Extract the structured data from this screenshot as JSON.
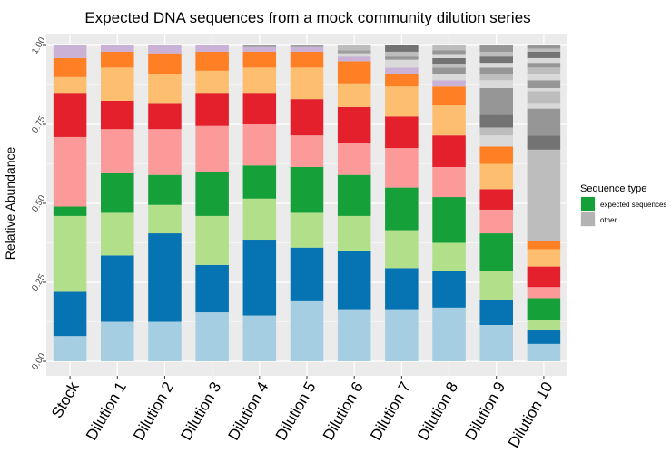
{
  "chart_data": {
    "type": "bar",
    "stacked": true,
    "title": "Expected DNA sequences from a mock community dilution series",
    "xlabel": "",
    "ylabel": "Relative Abundance",
    "ylim": [
      0,
      1
    ],
    "yticks": [
      "0.00",
      "0.25",
      "0.50",
      "0.75",
      "1.00"
    ],
    "grid": true,
    "legend": {
      "title": "Sequence type",
      "position": "right",
      "entries": [
        {
          "label": "expected sequences",
          "color": "#16a03a"
        },
        {
          "label": "other",
          "color": "#b3b3b3"
        }
      ]
    },
    "categories": [
      "Stock",
      "Dilution 1",
      "Dilution 2",
      "Dilution 3",
      "Dilution 4",
      "Dilution 5",
      "Dilution 6",
      "Dilution 7",
      "Dilution 8",
      "Dilution 9",
      "Dilution 10"
    ],
    "stack_palette": [
      "#a6cee3",
      "#1f78b4",
      "#b2df8a",
      "#33a02c",
      "#fb9a99",
      "#e31a1c",
      "#fdbf6f",
      "#ff7f00",
      "#cab2d6",
      "#d9d9d9",
      "#bdbdbd",
      "#969696",
      "#737373"
    ],
    "bars": [
      {
        "category": "Stock",
        "segments": [
          {
            "value": 0.08,
            "color": "#a6cee3"
          },
          {
            "value": 0.14,
            "color": "#0673b3"
          },
          {
            "value": 0.24,
            "color": "#b2df8a"
          },
          {
            "value": 0.03,
            "color": "#16a03a"
          },
          {
            "value": 0.22,
            "color": "#fb9a99"
          },
          {
            "value": 0.14,
            "color": "#e3202b"
          },
          {
            "value": 0.05,
            "color": "#fdbf6f"
          },
          {
            "value": 0.06,
            "color": "#ff7f24"
          },
          {
            "value": 0.04,
            "color": "#cab2d6"
          }
        ]
      },
      {
        "category": "Dilution 1",
        "segments": [
          {
            "value": 0.125,
            "color": "#a6cee3"
          },
          {
            "value": 0.21,
            "color": "#0673b3"
          },
          {
            "value": 0.135,
            "color": "#b2df8a"
          },
          {
            "value": 0.125,
            "color": "#16a03a"
          },
          {
            "value": 0.14,
            "color": "#fb9a99"
          },
          {
            "value": 0.09,
            "color": "#e3202b"
          },
          {
            "value": 0.105,
            "color": "#fdbf6f"
          },
          {
            "value": 0.05,
            "color": "#ff7f24"
          },
          {
            "value": 0.02,
            "color": "#cab2d6"
          }
        ]
      },
      {
        "category": "Dilution 2",
        "segments": [
          {
            "value": 0.125,
            "color": "#a6cee3"
          },
          {
            "value": 0.28,
            "color": "#0673b3"
          },
          {
            "value": 0.09,
            "color": "#b2df8a"
          },
          {
            "value": 0.095,
            "color": "#16a03a"
          },
          {
            "value": 0.145,
            "color": "#fb9a99"
          },
          {
            "value": 0.08,
            "color": "#e3202b"
          },
          {
            "value": 0.095,
            "color": "#fdbf6f"
          },
          {
            "value": 0.065,
            "color": "#ff7f24"
          },
          {
            "value": 0.025,
            "color": "#cab2d6"
          }
        ]
      },
      {
        "category": "Dilution 3",
        "segments": [
          {
            "value": 0.155,
            "color": "#a6cee3"
          },
          {
            "value": 0.15,
            "color": "#0673b3"
          },
          {
            "value": 0.155,
            "color": "#b2df8a"
          },
          {
            "value": 0.14,
            "color": "#16a03a"
          },
          {
            "value": 0.145,
            "color": "#fb9a99"
          },
          {
            "value": 0.105,
            "color": "#e3202b"
          },
          {
            "value": 0.07,
            "color": "#fdbf6f"
          },
          {
            "value": 0.06,
            "color": "#ff7f24"
          },
          {
            "value": 0.02,
            "color": "#cab2d6"
          }
        ]
      },
      {
        "category": "Dilution 4",
        "segments": [
          {
            "value": 0.145,
            "color": "#a6cee3"
          },
          {
            "value": 0.24,
            "color": "#0673b3"
          },
          {
            "value": 0.13,
            "color": "#b2df8a"
          },
          {
            "value": 0.105,
            "color": "#16a03a"
          },
          {
            "value": 0.13,
            "color": "#fb9a99"
          },
          {
            "value": 0.1,
            "color": "#e3202b"
          },
          {
            "value": 0.08,
            "color": "#fdbf6f"
          },
          {
            "value": 0.05,
            "color": "#ff7f24"
          },
          {
            "value": 0.015,
            "color": "#cab2d6"
          },
          {
            "value": 0.005,
            "color": "#9e9e9e"
          }
        ]
      },
      {
        "category": "Dilution 5",
        "segments": [
          {
            "value": 0.19,
            "color": "#a6cee3"
          },
          {
            "value": 0.17,
            "color": "#0673b3"
          },
          {
            "value": 0.11,
            "color": "#b2df8a"
          },
          {
            "value": 0.145,
            "color": "#16a03a"
          },
          {
            "value": 0.1,
            "color": "#fb9a99"
          },
          {
            "value": 0.115,
            "color": "#e3202b"
          },
          {
            "value": 0.1,
            "color": "#fdbf6f"
          },
          {
            "value": 0.05,
            "color": "#ff7f24"
          },
          {
            "value": 0.015,
            "color": "#cab2d6"
          },
          {
            "value": 0.005,
            "color": "#9e9e9e"
          }
        ]
      },
      {
        "category": "Dilution 6",
        "segments": [
          {
            "value": 0.165,
            "color": "#a6cee3"
          },
          {
            "value": 0.185,
            "color": "#0673b3"
          },
          {
            "value": 0.11,
            "color": "#b2df8a"
          },
          {
            "value": 0.13,
            "color": "#16a03a"
          },
          {
            "value": 0.1,
            "color": "#fb9a99"
          },
          {
            "value": 0.115,
            "color": "#e3202b"
          },
          {
            "value": 0.075,
            "color": "#fdbf6f"
          },
          {
            "value": 0.07,
            "color": "#ff7f24"
          },
          {
            "value": 0.015,
            "color": "#cab2d6"
          },
          {
            "value": 0.01,
            "color": "#d9d9d9"
          },
          {
            "value": 0.01,
            "color": "#9e9e9e"
          },
          {
            "value": 0.015,
            "color": "#bdbdbd"
          }
        ]
      },
      {
        "category": "Dilution 7",
        "segments": [
          {
            "value": 0.165,
            "color": "#a6cee3"
          },
          {
            "value": 0.13,
            "color": "#0673b3"
          },
          {
            "value": 0.12,
            "color": "#b2df8a"
          },
          {
            "value": 0.135,
            "color": "#16a03a"
          },
          {
            "value": 0.125,
            "color": "#fb9a99"
          },
          {
            "value": 0.1,
            "color": "#e3202b"
          },
          {
            "value": 0.095,
            "color": "#fdbf6f"
          },
          {
            "value": 0.04,
            "color": "#ff7f24"
          },
          {
            "value": 0.02,
            "color": "#cab2d6"
          },
          {
            "value": 0.025,
            "color": "#d9d9d9"
          },
          {
            "value": 0.01,
            "color": "#969696"
          },
          {
            "value": 0.015,
            "color": "#bdbdbd"
          },
          {
            "value": 0.02,
            "color": "#737373"
          }
        ]
      },
      {
        "category": "Dilution 8",
        "segments": [
          {
            "value": 0.17,
            "color": "#a6cee3"
          },
          {
            "value": 0.115,
            "color": "#0673b3"
          },
          {
            "value": 0.09,
            "color": "#b2df8a"
          },
          {
            "value": 0.145,
            "color": "#16a03a"
          },
          {
            "value": 0.095,
            "color": "#fb9a99"
          },
          {
            "value": 0.1,
            "color": "#e3202b"
          },
          {
            "value": 0.095,
            "color": "#fdbf6f"
          },
          {
            "value": 0.06,
            "color": "#ff7f24"
          },
          {
            "value": 0.02,
            "color": "#cab2d6"
          },
          {
            "value": 0.02,
            "color": "#d9d9d9"
          },
          {
            "value": 0.02,
            "color": "#969696"
          },
          {
            "value": 0.01,
            "color": "#bdbdbd"
          },
          {
            "value": 0.02,
            "color": "#737373"
          },
          {
            "value": 0.01,
            "color": "#d9d9d9"
          },
          {
            "value": 0.015,
            "color": "#969696"
          },
          {
            "value": 0.015,
            "color": "#bdbdbd"
          }
        ]
      },
      {
        "category": "Dilution 9",
        "segments": [
          {
            "value": 0.115,
            "color": "#a6cee3"
          },
          {
            "value": 0.08,
            "color": "#0673b3"
          },
          {
            "value": 0.09,
            "color": "#b2df8a"
          },
          {
            "value": 0.12,
            "color": "#16a03a"
          },
          {
            "value": 0.075,
            "color": "#fb9a99"
          },
          {
            "value": 0.065,
            "color": "#e3202b"
          },
          {
            "value": 0.08,
            "color": "#fdbf6f"
          },
          {
            "value": 0.055,
            "color": "#ff7f24"
          },
          {
            "value": 0.035,
            "color": "#d9d9d9"
          },
          {
            "value": 0.025,
            "color": "#bdbdbd"
          },
          {
            "value": 0.04,
            "color": "#737373"
          },
          {
            "value": 0.085,
            "color": "#969696"
          },
          {
            "value": 0.025,
            "color": "#d9d9d9"
          },
          {
            "value": 0.02,
            "color": "#bdbdbd"
          },
          {
            "value": 0.02,
            "color": "#969696"
          },
          {
            "value": 0.015,
            "color": "#d9d9d9"
          },
          {
            "value": 0.02,
            "color": "#737373"
          },
          {
            "value": 0.015,
            "color": "#bdbdbd"
          },
          {
            "value": 0.02,
            "color": "#969696"
          }
        ]
      },
      {
        "category": "Dilution 10",
        "segments": [
          {
            "value": 0.055,
            "color": "#a6cee3"
          },
          {
            "value": 0.045,
            "color": "#0673b3"
          },
          {
            "value": 0.03,
            "color": "#b2df8a"
          },
          {
            "value": 0.07,
            "color": "#16a03a"
          },
          {
            "value": 0.035,
            "color": "#fb9a99"
          },
          {
            "value": 0.065,
            "color": "#e3202b"
          },
          {
            "value": 0.055,
            "color": "#fdbf6f"
          },
          {
            "value": 0.025,
            "color": "#ff7f24"
          },
          {
            "value": 0.29,
            "color": "#bdbdbd"
          },
          {
            "value": 0.045,
            "color": "#737373"
          },
          {
            "value": 0.085,
            "color": "#969696"
          },
          {
            "value": 0.015,
            "color": "#d9d9d9"
          },
          {
            "value": 0.04,
            "color": "#bdbdbd"
          },
          {
            "value": 0.01,
            "color": "#d9d9d9"
          },
          {
            "value": 0.025,
            "color": "#969696"
          },
          {
            "value": 0.02,
            "color": "#d9d9d9"
          },
          {
            "value": 0.02,
            "color": "#bdbdbd"
          },
          {
            "value": 0.015,
            "color": "#969696"
          },
          {
            "value": 0.015,
            "color": "#d9d9d9"
          },
          {
            "value": 0.02,
            "color": "#737373"
          },
          {
            "value": 0.01,
            "color": "#bdbdbd"
          },
          {
            "value": 0.01,
            "color": "#969696"
          }
        ]
      }
    ]
  }
}
